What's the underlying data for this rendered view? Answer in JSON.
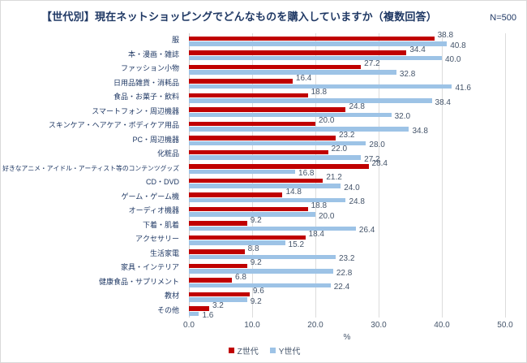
{
  "title": "【世代別】現在ネットショッピングでどんなものを購入していますか（複数回答）",
  "n_label": "N=500",
  "chart_data": {
    "type": "bar",
    "orientation": "horizontal",
    "title": "【世代別】現在ネットショッピングでどんなものを購入していますか（複数回答）",
    "sample_label": "N=500",
    "categories": [
      "服",
      "本・漫画・雑誌",
      "ファッション小物",
      "日用品雑貨・消耗品",
      "食品・お菓子・飲料",
      "スマートフォン・周辺機器",
      "スキンケア・ヘアケア・ボディケア用品",
      "PC・周辺機器",
      "化粧品",
      "好きなアニメ・アイドル・アーティスト等のコンテンツグッズ",
      "CD・DVD",
      "ゲーム・ゲーム機",
      "オーディオ機器",
      "下着・肌着",
      "アクセサリー",
      "生活家電",
      "家具・インテリア",
      "健康食品・サプリメント",
      "教材",
      "その他"
    ],
    "series": [
      {
        "name": "Z世代",
        "color": "#c00000",
        "values": [
          38.8,
          34.4,
          27.2,
          16.4,
          18.8,
          24.8,
          20.0,
          23.2,
          22.0,
          28.4,
          21.2,
          14.8,
          18.8,
          9.2,
          18.4,
          8.8,
          9.2,
          6.8,
          9.6,
          3.2
        ]
      },
      {
        "name": "Y世代",
        "color": "#9dc3e6",
        "values": [
          40.8,
          40.0,
          32.8,
          41.6,
          38.4,
          32.0,
          34.8,
          28.0,
          27.2,
          16.8,
          24.0,
          24.8,
          20.0,
          26.4,
          15.2,
          23.2,
          22.8,
          22.4,
          9.2,
          1.6
        ]
      }
    ],
    "xlabel": "%",
    "xlim": [
      0,
      50
    ],
    "xticks": [
      "0.0",
      "10.0",
      "20.0",
      "30.0",
      "40.0",
      "50.0"
    ],
    "grid": true,
    "legend_position": "bottom"
  }
}
